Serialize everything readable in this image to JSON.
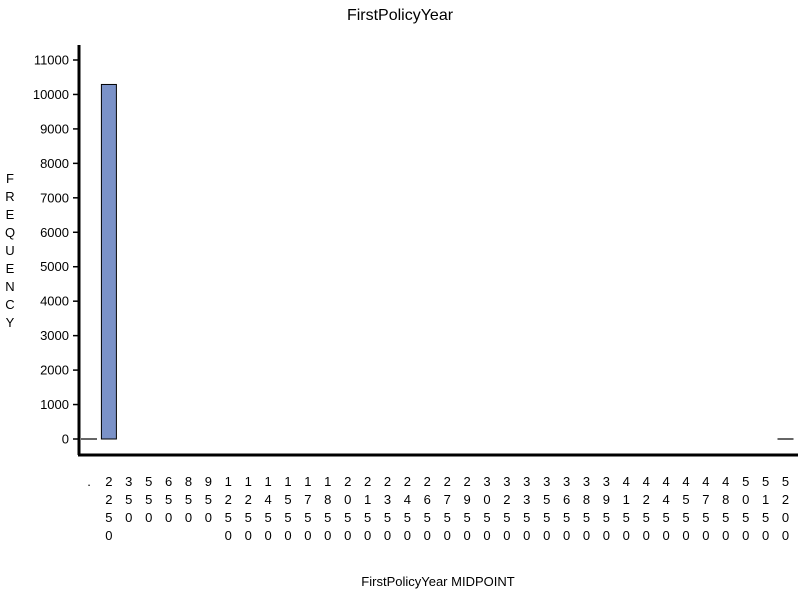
{
  "chart_data": {
    "type": "bar",
    "title": "FirstPolicyYear",
    "xlabel": "FirstPolicyYear MIDPOINT",
    "ylabel": "FREQUENCY",
    "ylim": [
      0,
      11000
    ],
    "y_ticks": [
      0,
      1000,
      2000,
      3000,
      4000,
      5000,
      6000,
      7000,
      8000,
      9000,
      10000,
      11000
    ],
    "categories": [
      ".",
      "2250",
      "350",
      "550",
      "650",
      "850",
      "950",
      "1250",
      "1250",
      "1450",
      "1550",
      "1750",
      "1850",
      "2050",
      "2150",
      "2350",
      "2450",
      "2650",
      "2750",
      "2950",
      "3050",
      "3250",
      "3350",
      "3550",
      "3650",
      "3850",
      "3950",
      "4150",
      "4250",
      "4450",
      "4550",
      "4750",
      "4850",
      "5050",
      "5150",
      "5200"
    ],
    "values": [
      5,
      10290,
      0,
      0,
      0,
      0,
      0,
      0,
      0,
      0,
      0,
      0,
      0,
      0,
      0,
      0,
      0,
      0,
      0,
      0,
      0,
      0,
      0,
      0,
      0,
      0,
      0,
      0,
      0,
      0,
      0,
      0,
      0,
      0,
      0,
      5
    ],
    "colors": {
      "bar": "#7b92c8",
      "outline": "#000000"
    },
    "grid": false,
    "legend": "none"
  }
}
